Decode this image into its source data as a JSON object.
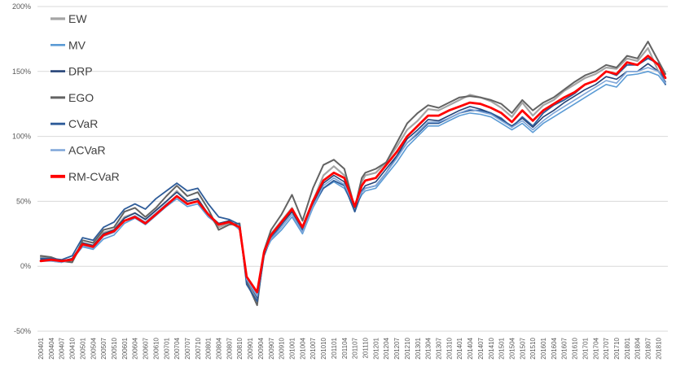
{
  "chart_data": {
    "type": "line",
    "title": "",
    "xlabel": "",
    "ylabel": "",
    "ylim": [
      -50,
      200
    ],
    "y_ticks": [
      "-50%",
      "0%",
      "50%",
      "100%",
      "150%",
      "200%"
    ],
    "y_tick_values": [
      -50,
      0,
      50,
      100,
      150,
      200
    ],
    "x_ticks": [
      "200401",
      "200404",
      "200407",
      "200410",
      "200501",
      "200504",
      "200507",
      "200510",
      "200601",
      "200604",
      "200607",
      "200610",
      "200701",
      "200704",
      "200707",
      "200710",
      "200801",
      "200804",
      "200807",
      "200810",
      "200901",
      "200904",
      "200907",
      "200910",
      "201001",
      "201004",
      "201007",
      "201010",
      "201101",
      "201104",
      "201107",
      "201110",
      "201201",
      "201204",
      "201207",
      "201210",
      "201301",
      "201304",
      "201307",
      "201310",
      "201401",
      "201404",
      "201407",
      "201410",
      "201501",
      "201504",
      "201507",
      "201510",
      "201601",
      "201604",
      "201607",
      "201610",
      "201701",
      "201704",
      "201707",
      "201710",
      "201801",
      "201804",
      "201807",
      "201810"
    ],
    "grid": true,
    "legend_position": "top-left",
    "x_dates": [
      "200401",
      "200404",
      "200407",
      "200410",
      "200501",
      "200504",
      "200507",
      "200510",
      "200601",
      "200604",
      "200607",
      "200610",
      "200701",
      "200704",
      "200707",
      "200710",
      "200801",
      "200804",
      "200807",
      "200810",
      "200812",
      "200903",
      "200905",
      "200907",
      "200910",
      "201001",
      "201004",
      "201007",
      "201010",
      "201101",
      "201104",
      "201107",
      "201109",
      "201110",
      "201201",
      "201204",
      "201207",
      "201210",
      "201301",
      "201304",
      "201307",
      "201310",
      "201401",
      "201404",
      "201407",
      "201410",
      "201501",
      "201504",
      "201507",
      "201510",
      "201601",
      "201604",
      "201607",
      "201610",
      "201701",
      "201704",
      "201707",
      "201710",
      "201801",
      "201804",
      "201807",
      "201810",
      "201812"
    ],
    "series": [
      {
        "name": "EW",
        "color": "#a5a5a5",
        "width": 2.2,
        "values": [
          7,
          6,
          4,
          3,
          18,
          16,
          26,
          28,
          38,
          41,
          36,
          43,
          50,
          58,
          50,
          52,
          40,
          30,
          33,
          30,
          -10,
          -26,
          10,
          25,
          35,
          45,
          30,
          50,
          70,
          77,
          70,
          45,
          65,
          70,
          72,
          80,
          92,
          105,
          112,
          121,
          120,
          124,
          128,
          132,
          130,
          127,
          122,
          115,
          126,
          116,
          124,
          128,
          135,
          140,
          145,
          148,
          153,
          152,
          160,
          158,
          168,
          150,
          145
        ]
      },
      {
        "name": "MV",
        "color": "#5b9bd5",
        "width": 1.6,
        "values": [
          4,
          4,
          3,
          5,
          15,
          13,
          21,
          24,
          33,
          37,
          32,
          39,
          46,
          52,
          46,
          48,
          38,
          32,
          35,
          28,
          -10,
          -22,
          10,
          20,
          28,
          38,
          25,
          45,
          60,
          65,
          60,
          45,
          55,
          58,
          60,
          70,
          80,
          92,
          100,
          108,
          108,
          112,
          116,
          118,
          117,
          115,
          110,
          105,
          110,
          103,
          110,
          115,
          120,
          125,
          130,
          135,
          140,
          138,
          147,
          148,
          150,
          147,
          140
        ]
      },
      {
        "name": "DRP",
        "color": "#264478",
        "width": 1.6,
        "values": [
          5,
          5,
          4,
          6,
          18,
          16,
          25,
          28,
          37,
          41,
          36,
          43,
          50,
          57,
          50,
          52,
          40,
          33,
          35,
          30,
          -10,
          -24,
          10,
          22,
          32,
          42,
          28,
          47,
          64,
          70,
          65,
          42,
          58,
          62,
          65,
          75,
          85,
          98,
          105,
          113,
          112,
          116,
          120,
          123,
          121,
          118,
          113,
          108,
          114,
          107,
          115,
          120,
          126,
          131,
          136,
          140,
          146,
          144,
          150,
          150,
          156,
          150,
          142
        ]
      },
      {
        "name": "EGO",
        "color": "#636363",
        "width": 2.0,
        "values": [
          8,
          7,
          4,
          3,
          20,
          18,
          28,
          30,
          42,
          45,
          38,
          45,
          54,
          62,
          54,
          57,
          44,
          28,
          32,
          33,
          -12,
          -30,
          12,
          28,
          40,
          55,
          35,
          60,
          78,
          82,
          75,
          45,
          68,
          72,
          75,
          80,
          95,
          110,
          118,
          124,
          122,
          126,
          130,
          131,
          130,
          128,
          125,
          118,
          128,
          120,
          126,
          130,
          136,
          142,
          147,
          150,
          155,
          153,
          162,
          160,
          173,
          158,
          148
        ]
      },
      {
        "name": "CVaR",
        "color": "#2e5c99",
        "width": 1.8,
        "values": [
          6,
          6,
          5,
          8,
          22,
          20,
          30,
          34,
          44,
          48,
          44,
          52,
          58,
          64,
          58,
          60,
          48,
          38,
          36,
          32,
          -14,
          -27,
          8,
          22,
          32,
          44,
          28,
          47,
          60,
          66,
          62,
          42,
          57,
          60,
          62,
          72,
          84,
          95,
          102,
          110,
          110,
          114,
          118,
          120,
          120,
          118,
          114,
          107,
          115,
          108,
          118,
          124,
          128,
          133,
          140,
          143,
          150,
          147,
          155,
          155,
          160,
          156,
          140
        ]
      },
      {
        "name": "ACVaR",
        "color": "#7fa6d9",
        "width": 1.6,
        "values": [
          4,
          4,
          3,
          5,
          16,
          14,
          23,
          26,
          35,
          39,
          34,
          41,
          48,
          54,
          48,
          50,
          39,
          32,
          34,
          29,
          -10,
          -23,
          10,
          21,
          30,
          40,
          26,
          46,
          62,
          68,
          63,
          46,
          57,
          60,
          62,
          72,
          83,
          95,
          103,
          111,
          111,
          114,
          118,
          121,
          119,
          117,
          112,
          107,
          112,
          105,
          112,
          118,
          123,
          128,
          133,
          138,
          143,
          141,
          150,
          150,
          153,
          150,
          141
        ]
      },
      {
        "name": "RM-CVaR",
        "color": "#ff0000",
        "width": 2.8,
        "values": [
          4,
          5,
          4,
          5,
          17,
          15,
          24,
          27,
          35,
          38,
          33,
          40,
          47,
          54,
          48,
          50,
          40,
          32,
          34,
          30,
          -8,
          -20,
          11,
          24,
          34,
          44,
          30,
          50,
          66,
          72,
          68,
          46,
          62,
          66,
          68,
          78,
          88,
          100,
          108,
          116,
          116,
          120,
          123,
          126,
          125,
          122,
          118,
          111,
          120,
          112,
          120,
          125,
          130,
          134,
          140,
          143,
          150,
          148,
          157,
          155,
          162,
          155,
          145
        ]
      }
    ]
  }
}
